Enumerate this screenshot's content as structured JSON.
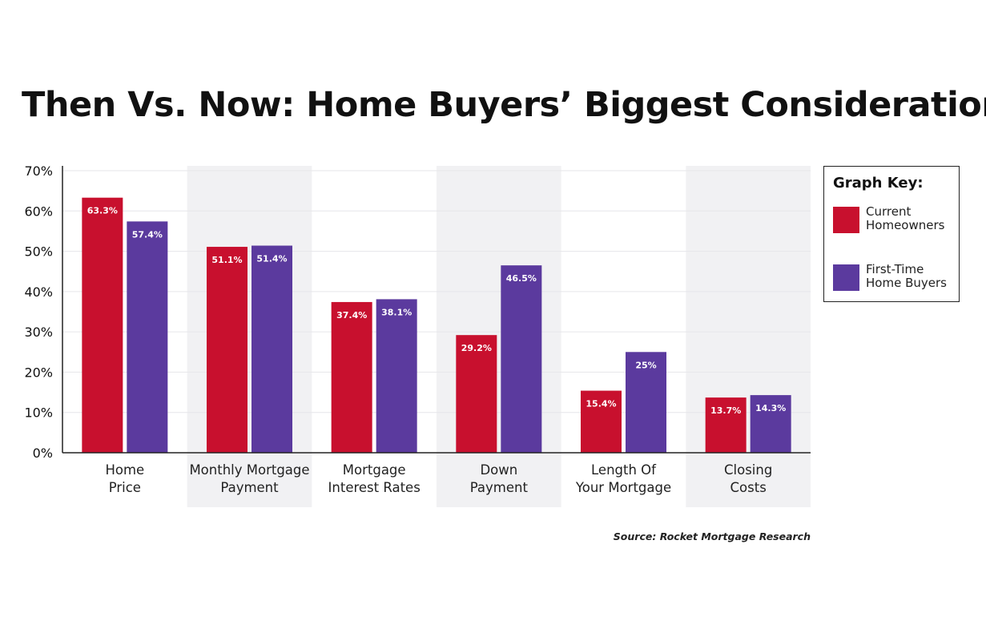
{
  "colors": {
    "current": "#C8102E",
    "first_time": "#5B3A9E",
    "band": "#F1F1F3",
    "grid": "#E6E6EA",
    "axis": "#222222"
  },
  "legend": {
    "title": "Graph Key:",
    "items": [
      {
        "label": "Current Homeowners",
        "color": "#C8102E"
      },
      {
        "label": "First-Time Home Buyers",
        "color": "#5B3A9E"
      }
    ]
  },
  "source": "Source: Rocket Mortgage Research",
  "chart_data": {
    "type": "bar",
    "title": "Then Vs. Now: Home Buyers’ Biggest Considerations",
    "xlabel": "",
    "ylabel": "",
    "ylim": [
      0,
      70
    ],
    "y_ticks": [
      0,
      10,
      20,
      30,
      40,
      50,
      60,
      70
    ],
    "y_tick_suffix": "%",
    "grid": true,
    "legend_position": "right",
    "categories": [
      [
        "Home",
        "Price"
      ],
      [
        "Monthly Mortgage",
        "Payment"
      ],
      [
        "Mortgage",
        "Interest Rates"
      ],
      [
        "Down",
        "Payment"
      ],
      [
        "Length Of",
        "Your Mortgage"
      ],
      [
        "Closing",
        "Costs"
      ]
    ],
    "series": [
      {
        "name": "Current Homeowners",
        "values": [
          63.3,
          51.1,
          37.4,
          29.2,
          15.4,
          13.7
        ],
        "labels": [
          "63.3%",
          "51.1%",
          "37.4%",
          "29.2%",
          "15.4%",
          "13.7%"
        ]
      },
      {
        "name": "First-Time Home Buyers",
        "values": [
          57.4,
          51.4,
          38.1,
          46.5,
          25,
          14.3
        ],
        "labels": [
          "57.4%",
          "51.4%",
          "38.1%",
          "46.5%",
          "25%",
          "14.3%"
        ]
      }
    ]
  }
}
